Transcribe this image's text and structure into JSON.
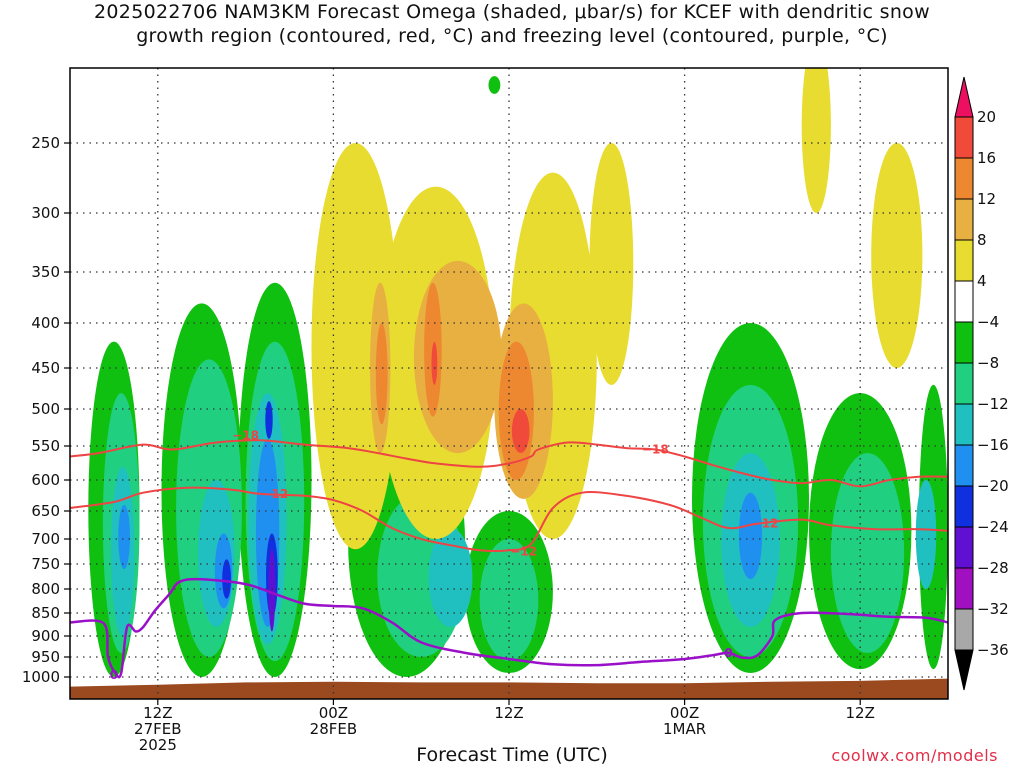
{
  "title": {
    "line1": "2025022706 NAM3KM Forecast Omega (shaded, μbar/s) for KCEF with dendritic snow",
    "line2": "growth region (contoured, red, °C) and freezing level (contoured, purple, °C)"
  },
  "x_axis_title": "Forecast Time (UTC)",
  "credit": "coolwx.com/models",
  "chart_data": {
    "type": "heatmap",
    "title": "2025022706 NAM3KM Forecast Omega (shaded, μbar/s) for KCEF with dendritic snow growth region (contoured, red, °C) and freezing level (contoured, purple, °C)",
    "xlabel": "Forecast Time (UTC)",
    "ylabel": "",
    "x_unit": "hours since 2025-02-27 06Z",
    "xlim": [
      0,
      60
    ],
    "y_unit": "pressure (mb)",
    "y_ticks": [
      250,
      300,
      350,
      400,
      450,
      500,
      550,
      600,
      650,
      700,
      750,
      800,
      850,
      900,
      950,
      1000
    ],
    "x_ticks": [
      {
        "hour": 6,
        "lines": [
          "12Z",
          "27FEB",
          "2025"
        ]
      },
      {
        "hour": 18,
        "lines": [
          "00Z",
          "28FEB"
        ]
      },
      {
        "hour": 30,
        "lines": [
          "12Z"
        ]
      },
      {
        "hour": 42,
        "lines": [
          "00Z",
          "1MAR"
        ]
      },
      {
        "hour": 54,
        "lines": [
          "12Z"
        ]
      }
    ],
    "grid": true,
    "colorbar": {
      "labels": [
        "20",
        "16",
        "12",
        "8",
        "4",
        "−4",
        "−8",
        "−12",
        "−16",
        "−20",
        "−24",
        "−28",
        "−32",
        "−36"
      ],
      "colors": [
        "#ee1060",
        "#f04a3a",
        "#ee8830",
        "#e8b040",
        "#e8dc30",
        "#ffffff",
        "#10c010",
        "#20d080",
        "#20c0c0",
        "#2090f0",
        "#1030e0",
        "#6010d0",
        "#a010c0",
        "#a8a8a8",
        "#000000"
      ]
    },
    "omega_regions": [
      {
        "level": "-4",
        "color": "#10c010",
        "blobs": [
          {
            "t": 3.0,
            "p0": 420,
            "p1": 1000,
            "w": 3.5
          },
          {
            "t": 9.0,
            "p0": 380,
            "p1": 1000,
            "w": 5.5
          },
          {
            "t": 14.0,
            "p0": 360,
            "p1": 1000,
            "w": 5.0
          },
          {
            "t": 23.0,
            "p0": 500,
            "p1": 1000,
            "w": 8.0
          },
          {
            "t": 30.0,
            "p0": 650,
            "p1": 990,
            "w": 6.0
          },
          {
            "t": 46.5,
            "p0": 400,
            "p1": 990,
            "w": 8.0
          },
          {
            "t": 54.0,
            "p0": 480,
            "p1": 980,
            "w": 7.0
          },
          {
            "t": 59.0,
            "p0": 470,
            "p1": 980,
            "w": 2.0
          },
          {
            "t": 29.0,
            "p0": 210,
            "p1": 220,
            "w": 0.8
          }
        ]
      },
      {
        "level": "-8",
        "color": "#20d080",
        "blobs": [
          {
            "t": 3.5,
            "p0": 480,
            "p1": 940,
            "w": 2.5
          },
          {
            "t": 9.5,
            "p0": 440,
            "p1": 950,
            "w": 4.5
          },
          {
            "t": 14.0,
            "p0": 420,
            "p1": 960,
            "w": 4.0
          },
          {
            "t": 24.0,
            "p0": 620,
            "p1": 950,
            "w": 6.0
          },
          {
            "t": 30.0,
            "p0": 700,
            "p1": 960,
            "w": 4.0
          },
          {
            "t": 46.5,
            "p0": 470,
            "p1": 950,
            "w": 6.5
          },
          {
            "t": 54.5,
            "p0": 560,
            "p1": 940,
            "w": 5.0
          }
        ]
      },
      {
        "level": "-12",
        "color": "#20c0c0",
        "blobs": [
          {
            "t": 3.6,
            "p0": 580,
            "p1": 900,
            "w": 1.6
          },
          {
            "t": 10.0,
            "p0": 600,
            "p1": 880,
            "w": 2.5
          },
          {
            "t": 13.5,
            "p0": 480,
            "p1": 920,
            "w": 2.6
          },
          {
            "t": 26.0,
            "p0": 680,
            "p1": 880,
            "w": 3.0
          },
          {
            "t": 46.5,
            "p0": 560,
            "p1": 880,
            "w": 4.0
          },
          {
            "t": 58.5,
            "p0": 600,
            "p1": 800,
            "w": 1.4
          }
        ]
      },
      {
        "level": "-16",
        "color": "#2090f0",
        "blobs": [
          {
            "t": 3.7,
            "p0": 640,
            "p1": 760,
            "w": 0.8
          },
          {
            "t": 10.5,
            "p0": 690,
            "p1": 840,
            "w": 1.2
          },
          {
            "t": 13.5,
            "p0": 540,
            "p1": 880,
            "w": 1.6
          },
          {
            "t": 46.5,
            "p0": 620,
            "p1": 780,
            "w": 1.6
          }
        ]
      },
      {
        "level": "-20",
        "color": "#1030e0",
        "blobs": [
          {
            "t": 10.7,
            "p0": 740,
            "p1": 820,
            "w": 0.6
          },
          {
            "t": 13.6,
            "p0": 490,
            "p1": 540,
            "w": 0.5
          },
          {
            "t": 13.8,
            "p0": 690,
            "p1": 860,
            "w": 0.8
          }
        ]
      },
      {
        "level": "-24",
        "color": "#6010d0",
        "blobs": [
          {
            "t": 13.8,
            "p0": 720,
            "p1": 890,
            "w": 0.45
          }
        ]
      },
      {
        "level": "4",
        "color": "#e8dc30",
        "blobs": [
          {
            "t": 19.5,
            "p0": 250,
            "p1": 720,
            "w": 6.0
          },
          {
            "t": 25.0,
            "p0": 280,
            "p1": 700,
            "w": 8.0
          },
          {
            "t": 33.0,
            "p0": 270,
            "p1": 700,
            "w": 6.0
          },
          {
            "t": 37.0,
            "p0": 250,
            "p1": 470,
            "w": 3.0
          },
          {
            "t": 51.0,
            "p0": 190,
            "p1": 300,
            "w": 2.0
          },
          {
            "t": 56.5,
            "p0": 250,
            "p1": 450,
            "w": 3.5
          }
        ]
      },
      {
        "level": "8",
        "color": "#e8b040",
        "blobs": [
          {
            "t": 26.5,
            "p0": 340,
            "p1": 560,
            "w": 6.0
          },
          {
            "t": 31.0,
            "p0": 380,
            "p1": 630,
            "w": 4.0
          },
          {
            "t": 21.2,
            "p0": 360,
            "p1": 560,
            "w": 1.4
          }
        ]
      },
      {
        "level": "12",
        "color": "#ee8830",
        "blobs": [
          {
            "t": 21.3,
            "p0": 400,
            "p1": 520,
            "w": 0.8
          },
          {
            "t": 24.8,
            "p0": 360,
            "p1": 510,
            "w": 1.2
          },
          {
            "t": 30.5,
            "p0": 420,
            "p1": 600,
            "w": 2.4
          }
        ]
      },
      {
        "level": "16",
        "color": "#f04a3a",
        "blobs": [
          {
            "t": 24.9,
            "p0": 420,
            "p1": 470,
            "w": 0.4
          },
          {
            "t": 30.8,
            "p0": 500,
            "p1": 560,
            "w": 1.2
          }
        ]
      }
    ],
    "isotherm_minus18": [
      [
        0,
        565
      ],
      [
        2,
        560
      ],
      [
        5,
        548
      ],
      [
        7,
        555
      ],
      [
        10,
        545
      ],
      [
        13,
        542
      ],
      [
        16,
        548
      ],
      [
        19,
        553
      ],
      [
        21,
        560
      ],
      [
        23,
        568
      ],
      [
        25,
        575
      ],
      [
        28,
        580
      ],
      [
        30,
        575
      ],
      [
        31.5,
        565
      ],
      [
        32,
        555
      ],
      [
        34,
        545
      ],
      [
        36,
        548
      ],
      [
        38,
        553
      ],
      [
        40,
        555
      ],
      [
        42,
        565
      ],
      [
        44,
        578
      ],
      [
        46,
        590
      ],
      [
        48,
        600
      ],
      [
        50,
        605
      ],
      [
        52,
        600
      ],
      [
        54,
        610
      ],
      [
        56,
        600
      ],
      [
        58,
        595
      ],
      [
        60,
        595
      ]
    ],
    "isotherm_minus12": [
      [
        0,
        645
      ],
      [
        3,
        635
      ],
      [
        5,
        620
      ],
      [
        8,
        612
      ],
      [
        11,
        615
      ],
      [
        13,
        622
      ],
      [
        16,
        625
      ],
      [
        18,
        632
      ],
      [
        20,
        650
      ],
      [
        22,
        680
      ],
      [
        24,
        700
      ],
      [
        26,
        712
      ],
      [
        28,
        722
      ],
      [
        30,
        722
      ],
      [
        31.5,
        710
      ],
      [
        33,
        645
      ],
      [
        35,
        620
      ],
      [
        38,
        625
      ],
      [
        41,
        640
      ],
      [
        43,
        660
      ],
      [
        45,
        680
      ],
      [
        47,
        672
      ],
      [
        50,
        665
      ],
      [
        52,
        675
      ],
      [
        55,
        682
      ],
      [
        58,
        682
      ],
      [
        60,
        685
      ]
    ],
    "label_minus18": [
      {
        "t": 12.0,
        "p": 535,
        "text": "−18"
      },
      {
        "t": 40.0,
        "p": 555,
        "text": "−18"
      }
    ],
    "label_minus12": [
      {
        "t": 14.0,
        "p": 622,
        "text": "−12"
      },
      {
        "t": 31.0,
        "p": 725,
        "text": "−12"
      },
      {
        "t": 47.5,
        "p": 672,
        "text": "−12"
      }
    ],
    "freezing_level": [
      [
        0,
        870
      ],
      [
        2.3,
        872
      ],
      [
        2.6,
        950
      ],
      [
        3.1,
        990
      ],
      [
        3.5,
        990
      ],
      [
        3.9,
        880
      ],
      [
        4.5,
        890
      ],
      [
        5.0,
        880
      ],
      [
        5.8,
        845
      ],
      [
        6.8,
        810
      ],
      [
        7.5,
        785
      ],
      [
        9,
        780
      ],
      [
        12,
        790
      ],
      [
        14,
        810
      ],
      [
        16,
        830
      ],
      [
        18,
        835
      ],
      [
        20,
        840
      ],
      [
        22,
        870
      ],
      [
        24,
        915
      ],
      [
        27,
        940
      ],
      [
        30,
        955
      ],
      [
        33,
        968
      ],
      [
        36,
        970
      ],
      [
        39,
        962
      ],
      [
        42,
        955
      ],
      [
        44,
        945
      ],
      [
        45,
        940
      ],
      [
        46,
        952
      ],
      [
        47,
        945
      ],
      [
        48,
        900
      ],
      [
        48.2,
        865
      ],
      [
        50,
        850
      ],
      [
        53,
        852
      ],
      [
        56,
        858
      ],
      [
        58.5,
        860
      ],
      [
        60,
        870
      ]
    ],
    "label_freezing": [
      {
        "t": 3.0,
        "p": 995,
        "text": "0"
      },
      {
        "t": 45.0,
        "p": 940,
        "text": "0"
      }
    ],
    "terrain_pressure": [
      [
        0,
        1025
      ],
      [
        6,
        1020
      ],
      [
        12,
        1014
      ],
      [
        18,
        1012
      ],
      [
        24,
        1014
      ],
      [
        30,
        1014
      ],
      [
        36,
        1016
      ],
      [
        42,
        1016
      ],
      [
        48,
        1012
      ],
      [
        54,
        1010
      ],
      [
        60,
        1004
      ]
    ]
  }
}
